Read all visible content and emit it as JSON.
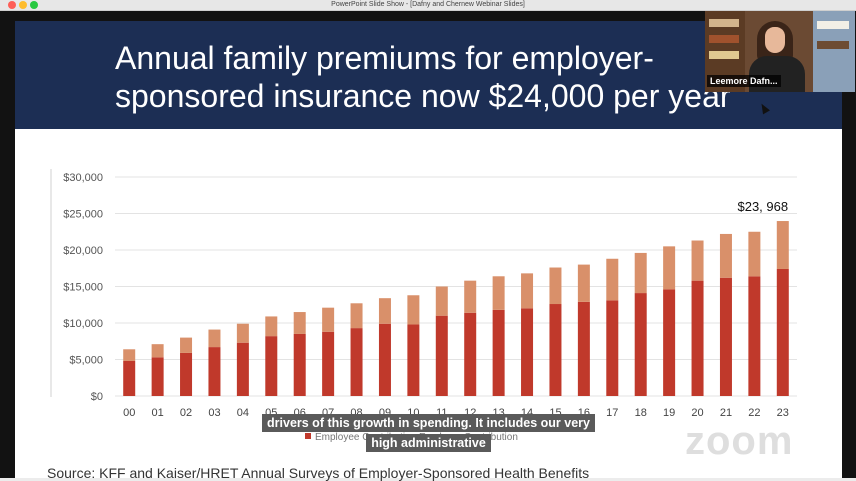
{
  "window": {
    "title": "PowerPoint Slide Show - [Dafny and Chernew Webinar Slides]"
  },
  "slide": {
    "title": "Annual family premiums for employer-sponsored insurance now $24,000 per year",
    "title_line1": "Annual family premiums for employer-",
    "title_line2": "sponsored insurance now $24,000 per year",
    "source": "Source: KFF and Kaiser/HRET Annual Surveys of Employer-Sponsored Health Benefits"
  },
  "caption": {
    "line1": "drivers of this growth in spending. It includes our very",
    "line2": "high administrative"
  },
  "participant": {
    "name": "Leemore Dafn..."
  },
  "watermark": "zoom",
  "colors": {
    "header_bg": "#1c2e54",
    "worker": "#c0392b",
    "employer": "#d9906a",
    "gridline": "#e3e3e3"
  },
  "chart_data": {
    "type": "bar",
    "stacked": true,
    "categories": [
      "00",
      "01",
      "02",
      "03",
      "04",
      "05",
      "06",
      "07",
      "08",
      "09",
      "10",
      "11",
      "12",
      "13",
      "14",
      "15",
      "16",
      "17",
      "18",
      "19",
      "20",
      "21",
      "22",
      "23"
    ],
    "series": [
      {
        "values": [
          4800,
          5300,
          5900,
          6700,
          7300,
          8200,
          8500,
          8800,
          9300,
          9900,
          9800,
          11000,
          11400,
          11800,
          12000,
          12600,
          12900,
          13100,
          14100,
          14600,
          15800,
          16200,
          16400,
          17400
        ]
      },
      {
        "values": [
          1600,
          1800,
          2100,
          2400,
          2600,
          2700,
          3000,
          3300,
          3400,
          3500,
          4000,
          4000,
          4400,
          4600,
          4800,
          5000,
          5100,
          5700,
          5500,
          5900,
          5500,
          6000,
          6100,
          6568
        ]
      }
    ],
    "totals": [
      6400,
      7100,
      8000,
      9100,
      9900,
      10900,
      11500,
      12100,
      12700,
      13400,
      13800,
      15000,
      15800,
      16400,
      16800,
      17600,
      18000,
      18800,
      19600,
      20500,
      21300,
      22200,
      22500,
      23968
    ],
    "ylim": [
      0,
      30000
    ],
    "yticks": [
      "$0",
      "$5,000",
      "$10,000",
      "$15,000",
      "$20,000",
      "$25,000",
      "$30,000"
    ],
    "annotation": "$23, 968",
    "legend_partial": "Employee Contribution   Employer Contribution",
    "grid": true
  }
}
